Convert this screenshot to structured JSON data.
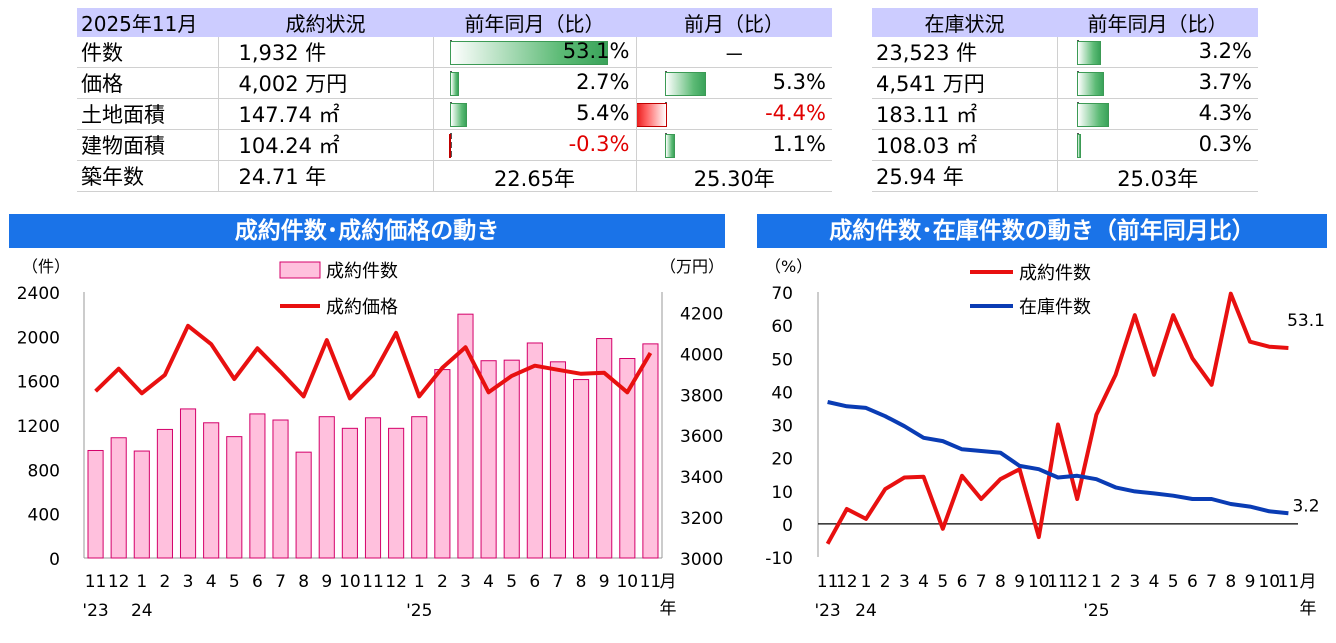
{
  "sales_table": {
    "headers": [
      "2025年11月",
      "成約状況",
      "前年同月（比）",
      "前月（比）"
    ],
    "rows": [
      {
        "label": "件数",
        "value": "1,932",
        "unit": "件",
        "yoy": "53.1%",
        "yoy_v": 53.1,
        "mom": "－",
        "mom_v": null
      },
      {
        "label": "価格",
        "value": "4,002",
        "unit": "万円",
        "yoy": "2.7%",
        "yoy_v": 2.7,
        "mom": "5.3%",
        "mom_v": 5.3
      },
      {
        "label": "土地面積",
        "value": "147.74",
        "unit": "㎡",
        "yoy": "5.4%",
        "yoy_v": 5.4,
        "mom": "-4.4%",
        "mom_v": -4.4
      },
      {
        "label": "建物面積",
        "value": "104.24",
        "unit": "㎡",
        "yoy": "-0.3%",
        "yoy_v": -0.3,
        "mom": "1.1%",
        "mom_v": 1.1
      },
      {
        "label": "築年数",
        "value": "24.71",
        "unit": "年",
        "yoy": "22.65年",
        "yoy_v": null,
        "mom": "25.30年",
        "mom_v": null
      }
    ]
  },
  "inventory_table": {
    "headers": [
      "在庫状況",
      "前年同月（比）"
    ],
    "rows": [
      {
        "value": "23,523",
        "unit": "件",
        "yoy": "3.2%",
        "yoy_v": 3.2
      },
      {
        "value": "4,541",
        "unit": "万円",
        "yoy": "3.7%",
        "yoy_v": 3.7
      },
      {
        "value": "183.11",
        "unit": "㎡",
        "yoy": "4.3%",
        "yoy_v": 4.3
      },
      {
        "value": "108.03",
        "unit": "㎡",
        "yoy": "0.3%",
        "yoy_v": 0.3
      },
      {
        "value": "25.94",
        "unit": "年",
        "yoy": "25.03年",
        "yoy_v": null
      }
    ]
  },
  "colors": {
    "header_bg": "#ccccff",
    "banner": "#1a73e8",
    "bar_fill": "#ffc0dd",
    "bar_stroke": "#d4006a",
    "line_red": "#e81010",
    "line_blue": "#0a3cb4",
    "neg_text": "#e00000"
  },
  "chart_data": [
    {
      "type": "bar",
      "title": "成約件数･成約価格の動き",
      "ylabel": "（件）",
      "y2label": "（万円）",
      "x_month_labels": [
        "11",
        "12",
        "1",
        "2",
        "3",
        "4",
        "5",
        "6",
        "7",
        "8",
        "9",
        "10",
        "11",
        "12",
        "1",
        "2",
        "3",
        "4",
        "5",
        "6",
        "7",
        "8",
        "9",
        "10",
        "11"
      ],
      "x_year_labels": [
        {
          "label": "'23",
          "index": 0
        },
        {
          "label": "24",
          "index": 2
        },
        {
          "label": "'25",
          "index": 14
        }
      ],
      "x_unit_label": [
        "月",
        "年"
      ],
      "ylim": [
        0,
        2400
      ],
      "yticks": [
        "0",
        "400",
        "800",
        "1200",
        "1600",
        "2000",
        "2400"
      ],
      "y2lim": [
        3000,
        4300
      ],
      "y2ticks": [
        "3000",
        "3200",
        "3400",
        "3600",
        "3800",
        "4000",
        "4200"
      ],
      "legend": "top-center",
      "series": [
        {
          "name": "成約件数",
          "kind": "bar",
          "axis": "left",
          "values": [
            970,
            1085,
            965,
            1160,
            1345,
            1220,
            1095,
            1300,
            1245,
            955,
            1275,
            1170,
            1265,
            1170,
            1275,
            1700,
            2200,
            1780,
            1785,
            1940,
            1770,
            1610,
            1980,
            1800,
            1932
          ]
        },
        {
          "name": "成約価格",
          "kind": "line",
          "axis": "right",
          "values": [
            3815,
            3925,
            3805,
            3895,
            4135,
            4045,
            3875,
            4025,
            3910,
            3790,
            4065,
            3780,
            3895,
            4100,
            3790,
            3930,
            4030,
            3810,
            3890,
            3940,
            3920,
            3900,
            3905,
            3810,
            4002
          ]
        }
      ]
    },
    {
      "type": "line",
      "title": "成約件数･在庫件数の動き（前年同月比）",
      "ylabel": "（%）",
      "x_month_labels": [
        "11",
        "12",
        "1",
        "2",
        "3",
        "4",
        "5",
        "6",
        "7",
        "8",
        "9",
        "10",
        "11",
        "12",
        "1",
        "2",
        "3",
        "4",
        "5",
        "6",
        "7",
        "8",
        "9",
        "10",
        "11"
      ],
      "x_year_labels": [
        {
          "label": "'23",
          "index": 0
        },
        {
          "label": "24",
          "index": 2
        },
        {
          "label": "'25",
          "index": 14
        }
      ],
      "x_unit_label": [
        "月",
        "年"
      ],
      "ylim": [
        -10,
        70
      ],
      "yticks": [
        "-10",
        "0",
        "10",
        "20",
        "30",
        "40",
        "50",
        "60",
        "70"
      ],
      "legend": "top-center",
      "annotations": [
        {
          "text": "53.1",
          "series": 0
        },
        {
          "text": "3.2",
          "series": 1
        }
      ],
      "series": [
        {
          "name": "成約件数",
          "values": [
            -6,
            4.5,
            1.5,
            10.5,
            14,
            14.2,
            -1.5,
            14.5,
            7.5,
            13.5,
            16.5,
            -4,
            30,
            7.5,
            33,
            45,
            63,
            45,
            63,
            50,
            42,
            69.5,
            55,
            53.5,
            53.1
          ]
        },
        {
          "name": "在庫件数",
          "values": [
            36.8,
            35.5,
            35,
            32.5,
            29.5,
            26,
            25,
            22.5,
            22,
            21.5,
            17.5,
            16.5,
            14,
            14.5,
            13.5,
            11,
            9.8,
            9.2,
            8.5,
            7.5,
            7.5,
            6,
            5.2,
            3.8,
            3.2
          ]
        }
      ]
    }
  ]
}
